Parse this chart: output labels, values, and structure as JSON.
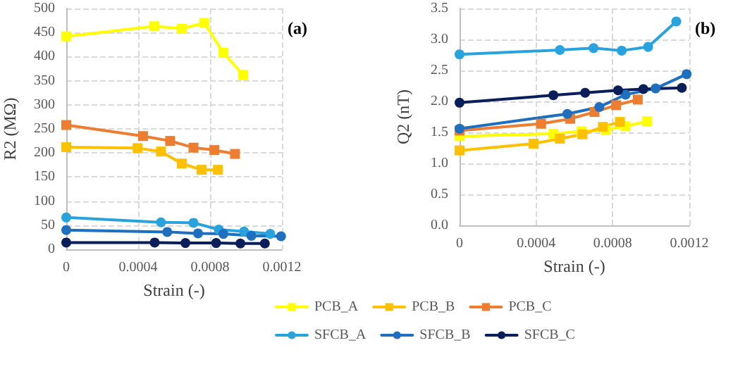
{
  "chart_data": [
    {
      "type": "line",
      "xlabel": "Strain (-)",
      "ylabel": "R2 (MΩ)",
      "annotations": [
        "(a)"
      ],
      "xlim": [
        0,
        0.0012
      ],
      "xticks": [
        0,
        0.0004,
        0.0008,
        0.0012
      ],
      "ylim": [
        0,
        500
      ],
      "yticks": [
        0,
        50,
        100,
        150,
        200,
        250,
        300,
        350,
        400,
        450,
        500
      ],
      "grid": true,
      "legend": "bottom",
      "line_style": "solid",
      "series": [
        {
          "name": "PCB_A",
          "color": "#ffff00",
          "marker": "square",
          "x": [
            0,
            0.00049,
            0.000643,
            0.000768,
            0.000874,
            0.000984
          ],
          "values": [
            442,
            463,
            458,
            470,
            408,
            362
          ]
        },
        {
          "name": "PCB_B",
          "color": "#ffc000",
          "marker": "square",
          "x": [
            0,
            0.000397,
            0.000527,
            0.000643,
            0.000753,
            0.000844
          ],
          "values": [
            212,
            210,
            203,
            178,
            165,
            165
          ]
        },
        {
          "name": "PCB_C",
          "color": "#ed7d31",
          "marker": "square",
          "x": [
            0,
            0.000427,
            0.000578,
            0.000708,
            0.000824,
            0.000939
          ],
          "values": [
            258,
            235,
            225,
            211,
            206,
            198
          ]
        },
        {
          "name": "SFCB_A",
          "color": "#29a3dd",
          "marker": "circle",
          "x": [
            0,
            0.000527,
            0.000708,
            0.000849,
            0.000989,
            0.001135
          ],
          "values": [
            66,
            56,
            55,
            41,
            37,
            32
          ]
        },
        {
          "name": "SFCB_B",
          "color": "#1f6fc0",
          "marker": "circle",
          "x": [
            0,
            0.000562,
            0.000733,
            0.000874,
            0.00103,
            0.001195
          ],
          "values": [
            40,
            36,
            33,
            32,
            28,
            27
          ]
        },
        {
          "name": "SFCB_C",
          "color": "#0a1e5a",
          "marker": "circle",
          "x": [
            0,
            0.000492,
            0.000663,
            0.000834,
            0.000969,
            0.001105
          ],
          "values": [
            14,
            14,
            13,
            13,
            12,
            12
          ]
        }
      ]
    },
    {
      "type": "line",
      "xlabel": "Strain (-)",
      "ylabel": "Q2 (nT)",
      "annotations": [
        "(b)"
      ],
      "xlim": [
        0,
        0.0012
      ],
      "xticks": [
        0,
        0.0004,
        0.0008,
        0.0012
      ],
      "ylim": [
        0,
        3.5
      ],
      "yticks": [
        {
          "value": 0,
          "label": "0.0"
        },
        0.5,
        {
          "value": 1,
          "label": "1.0"
        },
        1.5,
        {
          "value": 2,
          "label": "2.0"
        },
        2.5,
        {
          "value": 3,
          "label": "3.0"
        },
        3.5
      ],
      "grid": true,
      "line_style": "solid",
      "series": [
        {
          "color": "#ffff00",
          "marker": "square",
          "x": [
            0,
            0.00049,
            0.000637,
            0.000764,
            0.000867,
            0.00098
          ],
          "values": [
            1.44,
            1.48,
            1.52,
            1.54,
            1.6,
            1.68
          ]
        },
        {
          "color": "#ffc000",
          "marker": "square",
          "x": [
            0,
            0.000387,
            0.000524,
            0.000642,
            0.000749,
            0.000838
          ],
          "values": [
            1.21,
            1.32,
            1.4,
            1.47,
            1.59,
            1.67
          ]
        },
        {
          "color": "#ed7d31",
          "marker": "square",
          "x": [
            0,
            0.000426,
            0.000578,
            0.000705,
            0.000818,
            0.000931
          ],
          "values": [
            1.53,
            1.64,
            1.72,
            1.83,
            1.94,
            2.03
          ]
        },
        {
          "color": "#29a3dd",
          "marker": "circle",
          "x": [
            0,
            0.000524,
            0.0007,
            0.000847,
            0.000985,
            0.001132
          ],
          "values": [
            2.76,
            2.83,
            2.86,
            2.82,
            2.88,
            3.29
          ]
        },
        {
          "color": "#1f6fc0",
          "marker": "circle",
          "x": [
            0,
            0.000563,
            0.00073,
            0.000867,
            0.001024,
            0.001186
          ],
          "values": [
            1.56,
            1.8,
            1.91,
            2.11,
            2.21,
            2.44
          ]
        },
        {
          "color": "#0a1e5a",
          "marker": "circle",
          "x": [
            0,
            0.00049,
            0.000656,
            0.000828,
            0.00096,
            0.001161
          ],
          "values": [
            1.98,
            2.1,
            2.14,
            2.18,
            2.2,
            2.22
          ]
        }
      ]
    }
  ]
}
